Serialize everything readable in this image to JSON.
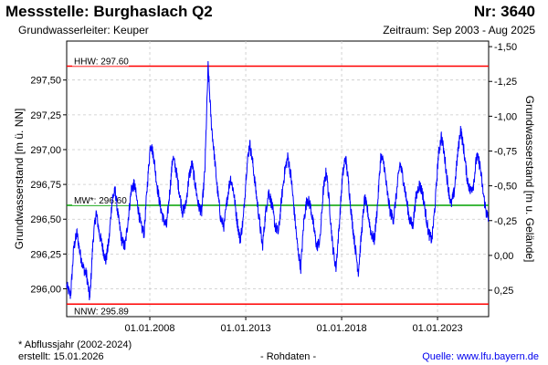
{
  "header": {
    "title": "Messstelle: Burghaslach Q2",
    "nr": "Nr: 3640",
    "aquifer": "Grundwasserleiter: Keuper",
    "period": "Zeitraum: Sep 2003 - Aug 2025"
  },
  "footer": {
    "footnote": "* Abflussjahr (2002-2024)",
    "created": "erstellt:  15.01.2026",
    "rawdata": "- Rohdaten -",
    "source": "Quelle: www.lfu.bayern.de"
  },
  "colors": {
    "series": "#0000ff",
    "hhw": "#ff0000",
    "nnw": "#ff0000",
    "mw": "#00a000",
    "grid": "#c8c8c8"
  },
  "chart_data": {
    "type": "line",
    "title": "",
    "xlabel": "",
    "ylabel": "Grundwasserstand [m ü. NN]",
    "ylabel_right": "Grundwasserstand [m u. Gelände]",
    "xlim": [
      "2003-09-01",
      "2025-08-31"
    ],
    "ylim": [
      295.8,
      297.78
    ],
    "x_ticks": [
      {
        "date": "2008-01-01",
        "label": "01.01.2008"
      },
      {
        "date": "2013-01-01",
        "label": "01.01.2013"
      },
      {
        "date": "2018-01-01",
        "label": "01.01.2018"
      },
      {
        "date": "2023-01-01",
        "label": "01.01.2023"
      }
    ],
    "y_ticks": [
      {
        "value": 296.0,
        "label": "296,00"
      },
      {
        "value": 296.25,
        "label": "296,25"
      },
      {
        "value": 296.5,
        "label": "296,50"
      },
      {
        "value": 296.75,
        "label": "296,75"
      },
      {
        "value": 297.0,
        "label": "297,00"
      },
      {
        "value": 297.25,
        "label": "297,25"
      },
      {
        "value": 297.5,
        "label": "297,50"
      }
    ],
    "y_right_ticks": [
      {
        "value": 297.74,
        "label": "-1,50"
      },
      {
        "value": 297.49,
        "label": "-1,25"
      },
      {
        "value": 297.24,
        "label": "-1,00"
      },
      {
        "value": 296.99,
        "label": "-0,75"
      },
      {
        "value": 296.74,
        "label": "-0,50"
      },
      {
        "value": 296.49,
        "label": "-0,25"
      },
      {
        "value": 296.24,
        "label": "0,00"
      },
      {
        "value": 295.99,
        "label": "0,25"
      }
    ],
    "grid": true,
    "reference_lines": [
      {
        "key": "hhw",
        "label": "HHW: 297.60",
        "value": 297.6
      },
      {
        "key": "mw",
        "label": "MW*: 296.60",
        "value": 296.6
      },
      {
        "key": "nnw",
        "label": "NNW: 295.89",
        "value": 295.89
      }
    ],
    "series": [
      {
        "x": [
          "2003-09-01",
          "2003-11-15",
          "2004-01-15",
          "2004-03-15",
          "2004-05-15",
          "2004-07-15",
          "2004-09-15",
          "2004-11-15",
          "2005-01-15",
          "2005-03-15",
          "2005-05-15",
          "2005-07-15",
          "2005-09-15",
          "2005-11-15",
          "2006-01-15",
          "2006-03-15",
          "2006-05-15",
          "2006-07-15",
          "2006-09-15",
          "2006-11-15",
          "2007-01-15",
          "2007-03-15",
          "2007-05-15",
          "2007-07-15",
          "2007-09-15",
          "2007-11-15",
          "2008-01-15",
          "2008-03-15",
          "2008-05-15",
          "2008-07-15",
          "2008-09-15",
          "2008-11-15",
          "2009-01-15",
          "2009-03-15",
          "2009-05-15",
          "2009-07-15",
          "2009-09-15",
          "2009-11-15",
          "2010-01-15",
          "2010-03-15",
          "2010-05-15",
          "2010-07-15",
          "2010-09-15",
          "2010-11-15",
          "2011-01-15",
          "2011-03-15",
          "2011-05-15",
          "2011-07-15",
          "2011-09-15",
          "2011-11-15",
          "2012-01-15",
          "2012-03-15",
          "2012-05-15",
          "2012-07-15",
          "2012-09-15",
          "2012-11-15",
          "2013-01-15",
          "2013-03-15",
          "2013-05-15",
          "2013-07-15",
          "2013-09-15",
          "2013-11-15",
          "2014-01-15",
          "2014-03-15",
          "2014-05-15",
          "2014-07-15",
          "2014-09-15",
          "2014-11-15",
          "2015-01-15",
          "2015-03-15",
          "2015-05-15",
          "2015-07-15",
          "2015-09-15",
          "2015-11-15",
          "2016-01-15",
          "2016-03-15",
          "2016-05-15",
          "2016-07-15",
          "2016-09-15",
          "2016-11-15",
          "2017-01-15",
          "2017-03-15",
          "2017-05-15",
          "2017-07-15",
          "2017-09-15",
          "2017-11-15",
          "2018-01-15",
          "2018-03-15",
          "2018-05-15",
          "2018-07-15",
          "2018-09-15",
          "2018-11-15",
          "2019-01-15",
          "2019-03-15",
          "2019-05-15",
          "2019-07-15",
          "2019-09-15",
          "2019-11-15",
          "2020-01-15",
          "2020-03-15",
          "2020-05-15",
          "2020-07-15",
          "2020-09-15",
          "2020-11-15",
          "2021-01-15",
          "2021-03-15",
          "2021-05-15",
          "2021-07-15",
          "2021-09-15",
          "2021-11-15",
          "2022-01-15",
          "2022-03-15",
          "2022-05-15",
          "2022-07-15",
          "2022-09-15",
          "2022-11-15",
          "2023-01-15",
          "2023-03-15",
          "2023-05-15",
          "2023-07-15",
          "2023-09-15",
          "2023-11-15",
          "2024-01-15",
          "2024-03-15",
          "2024-05-15",
          "2024-07-15",
          "2024-09-15",
          "2024-11-15",
          "2025-01-15",
          "2025-03-15",
          "2025-05-15",
          "2025-07-15",
          "2025-08-31"
        ],
        "y": [
          296.02,
          295.95,
          296.3,
          296.4,
          296.25,
          296.15,
          296.1,
          295.92,
          296.35,
          296.55,
          296.4,
          296.3,
          296.2,
          296.35,
          296.65,
          296.7,
          296.5,
          296.35,
          296.3,
          296.5,
          296.72,
          296.75,
          296.6,
          296.45,
          296.4,
          296.75,
          297.05,
          296.95,
          296.75,
          296.6,
          296.5,
          296.45,
          296.7,
          296.95,
          296.85,
          296.7,
          296.55,
          296.6,
          296.8,
          296.9,
          296.75,
          296.6,
          296.55,
          296.85,
          297.6,
          297.2,
          296.95,
          296.7,
          296.5,
          296.45,
          296.65,
          296.8,
          296.7,
          296.5,
          296.35,
          296.5,
          296.85,
          297.05,
          296.9,
          296.7,
          296.5,
          296.3,
          296.55,
          296.7,
          296.6,
          296.45,
          296.4,
          296.65,
          296.85,
          296.95,
          296.8,
          296.55,
          296.3,
          296.15,
          296.5,
          296.65,
          296.6,
          296.45,
          296.3,
          296.35,
          296.7,
          296.85,
          296.6,
          296.3,
          296.15,
          296.45,
          296.8,
          296.95,
          296.75,
          296.5,
          296.3,
          296.12,
          296.4,
          296.65,
          296.55,
          296.4,
          296.35,
          296.6,
          296.95,
          296.9,
          296.7,
          296.55,
          296.5,
          296.7,
          296.9,
          296.8,
          296.65,
          296.5,
          296.45,
          296.65,
          296.75,
          296.7,
          296.55,
          296.4,
          296.35,
          296.6,
          296.95,
          297.1,
          296.95,
          296.75,
          296.6,
          296.7,
          296.95,
          297.15,
          297.0,
          296.8,
          296.7,
          296.75,
          296.95,
          296.9,
          296.7,
          296.55,
          296.5
        ]
      }
    ]
  }
}
